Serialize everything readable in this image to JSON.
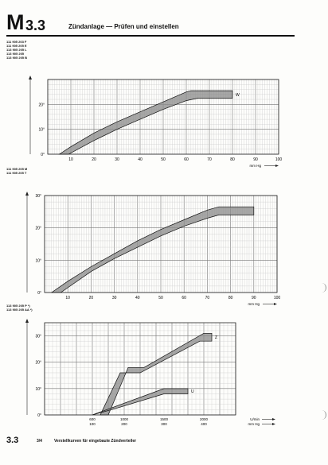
{
  "header": {
    "letter": "M",
    "number": "3.3",
    "title": "Zündanlage — Prüfen und einstellen"
  },
  "charts": [
    {
      "parts": [
        "111 905 203 F",
        "111 905 205 E",
        "113 905 205 L",
        "113 905 205",
        "113 905 205 B"
      ],
      "y_ticks": [
        "",
        "20°",
        "10°",
        "0°"
      ],
      "x_ticks": [
        "10",
        "20",
        "30",
        "40",
        "50",
        "60",
        "70",
        "80",
        "90",
        "100"
      ],
      "x_label": "mm Hg",
      "band_label": "W",
      "band_top": [
        [
          5,
          0
        ],
        [
          10,
          3
        ],
        [
          20,
          8.5
        ],
        [
          30,
          13
        ],
        [
          40,
          17
        ],
        [
          50,
          21
        ],
        [
          60,
          25
        ],
        [
          62,
          25.5
        ],
        [
          80,
          25.5
        ]
      ],
      "band_bottom": [
        [
          9,
          0
        ],
        [
          20,
          5.5
        ],
        [
          30,
          10
        ],
        [
          40,
          14
        ],
        [
          50,
          18
        ],
        [
          60,
          21.5
        ],
        [
          65,
          22.5
        ],
        [
          80,
          22.5
        ]
      ]
    },
    {
      "parts": [
        "111 905 205 M",
        "111 905 205 T"
      ],
      "y_ticks": [
        "30°",
        "20°",
        "10°",
        "0°"
      ],
      "x_ticks": [
        "10",
        "20",
        "30",
        "40",
        "50",
        "60",
        "70",
        "80",
        "90",
        "100"
      ],
      "x_label": "mm Hg",
      "band_label": "",
      "band_top": [
        [
          3,
          0
        ],
        [
          10,
          3.5
        ],
        [
          20,
          8
        ],
        [
          30,
          12
        ],
        [
          40,
          16
        ],
        [
          50,
          19.5
        ],
        [
          60,
          22.5
        ],
        [
          70,
          25.5
        ],
        [
          75,
          26.5
        ],
        [
          90,
          26.5
        ]
      ],
      "band_bottom": [
        [
          7,
          0
        ],
        [
          10,
          1.5
        ],
        [
          20,
          6.5
        ],
        [
          30,
          10.5
        ],
        [
          40,
          14
        ],
        [
          50,
          17.5
        ],
        [
          60,
          20.5
        ],
        [
          70,
          23
        ],
        [
          75,
          24
        ],
        [
          90,
          24
        ]
      ]
    },
    {
      "parts": [
        "113 905 205 P *)",
        "113 905 205 AA *)"
      ],
      "y_ticks": [
        "30°",
        "20°",
        "10°",
        "0°"
      ],
      "x_ticks": [
        "600",
        "1000",
        "1500",
        "2000"
      ],
      "x_ticks2": [
        "100",
        "200",
        "300",
        "400"
      ],
      "x_label": "U/min",
      "x_label2": "mm Hg",
      "band_label": "Z",
      "band_label2": "U",
      "band_top": [
        [
          800,
          0
        ],
        [
          1050,
          18
        ],
        [
          1250,
          18
        ],
        [
          2000,
          31
        ],
        [
          2100,
          31
        ]
      ],
      "band_bottom": [
        [
          700,
          0
        ],
        [
          950,
          16
        ],
        [
          1200,
          16
        ],
        [
          1950,
          28
        ],
        [
          2100,
          28
        ]
      ],
      "band2_top": [
        [
          600,
          0
        ],
        [
          1500,
          10
        ],
        [
          1800,
          10
        ]
      ],
      "band2_bottom": [
        [
          600,
          0
        ],
        [
          900,
          2.5
        ],
        [
          1500,
          8
        ],
        [
          1800,
          8
        ]
      ]
    }
  ],
  "footer": {
    "number": "3.3",
    "sub": "3/4",
    "title": "Verstellkurven für eingebaute Zündverteiler"
  }
}
